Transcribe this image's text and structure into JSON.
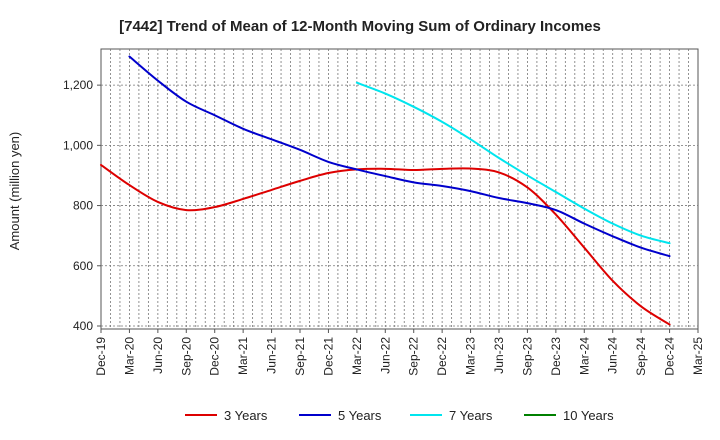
{
  "chart_data": {
    "type": "line",
    "title": "[7442]  Trend of Mean of 12-Month Moving Sum of Ordinary Incomes",
    "ylabel": "Amount (million yen)",
    "xlabel": "",
    "ylim": [
      390,
      1320
    ],
    "yticks": [
      400,
      600,
      800,
      1000,
      1200
    ],
    "ytick_labels": [
      "400",
      "600",
      "800",
      "1,000",
      "1,200"
    ],
    "x_categories": [
      "Dec-19",
      "Mar-20",
      "Jun-20",
      "Sep-20",
      "Dec-20",
      "Mar-21",
      "Jun-21",
      "Sep-21",
      "Dec-21",
      "Mar-22",
      "Jun-22",
      "Sep-22",
      "Dec-22",
      "Mar-23",
      "Jun-23",
      "Sep-23",
      "Dec-23",
      "Mar-24",
      "Jun-24",
      "Sep-24",
      "Dec-24",
      "Mar-25"
    ],
    "grid": true,
    "legend_position": "bottom",
    "series": [
      {
        "name": "3 Years",
        "color": "#dd0000",
        "points": [
          [
            0,
            935
          ],
          [
            1,
            868
          ],
          [
            2,
            812
          ],
          [
            3,
            785
          ],
          [
            4,
            795
          ],
          [
            5,
            822
          ],
          [
            6,
            852
          ],
          [
            7,
            882
          ],
          [
            8,
            908
          ],
          [
            9,
            920
          ],
          [
            10,
            922
          ],
          [
            11,
            918
          ],
          [
            12,
            922
          ],
          [
            13,
            923
          ],
          [
            14,
            910
          ],
          [
            15,
            860
          ],
          [
            16,
            770
          ],
          [
            17,
            660
          ],
          [
            18,
            550
          ],
          [
            19,
            465
          ],
          [
            20,
            405
          ]
        ]
      },
      {
        "name": "5 Years",
        "color": "#0000cc",
        "points": [
          [
            1,
            1295
          ],
          [
            2,
            1215
          ],
          [
            3,
            1145
          ],
          [
            4,
            1100
          ],
          [
            5,
            1055
          ],
          [
            6,
            1020
          ],
          [
            7,
            985
          ],
          [
            8,
            945
          ],
          [
            9,
            920
          ],
          [
            10,
            898
          ],
          [
            11,
            877
          ],
          [
            12,
            865
          ],
          [
            13,
            848
          ],
          [
            14,
            825
          ],
          [
            15,
            808
          ],
          [
            16,
            785
          ],
          [
            17,
            740
          ],
          [
            18,
            698
          ],
          [
            19,
            660
          ],
          [
            20,
            632
          ]
        ]
      },
      {
        "name": "7 Years",
        "color": "#00e5ee",
        "points": [
          [
            9,
            1208
          ],
          [
            10,
            1172
          ],
          [
            11,
            1128
          ],
          [
            12,
            1078
          ],
          [
            13,
            1020
          ],
          [
            14,
            958
          ],
          [
            15,
            900
          ],
          [
            16,
            845
          ],
          [
            17,
            790
          ],
          [
            18,
            740
          ],
          [
            19,
            700
          ],
          [
            20,
            675
          ]
        ]
      },
      {
        "name": "10 Years",
        "color": "#008000",
        "points": []
      }
    ]
  }
}
